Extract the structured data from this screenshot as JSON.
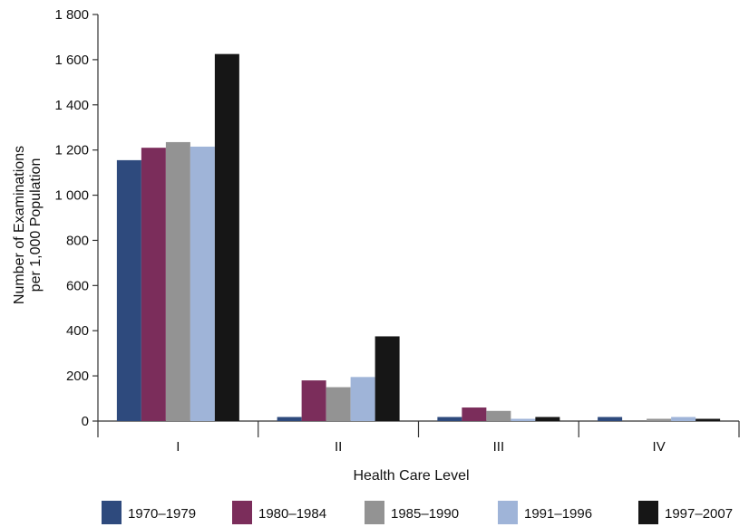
{
  "chart_data": {
    "type": "bar",
    "title": "",
    "xlabel": "Health Care Level",
    "ylabel": [
      "Number of  Examinations",
      "per 1,000 Population"
    ],
    "categories": [
      "I",
      "II",
      "III",
      "IV"
    ],
    "ylim": [
      0,
      1800
    ],
    "yticks": [
      0,
      200,
      400,
      600,
      800,
      1000,
      1200,
      1400,
      1600,
      1800
    ],
    "ytick_labels": [
      "0",
      "200",
      "400",
      "600",
      "800",
      "1 000",
      "1 200",
      "1 400",
      "1 600",
      "1 800"
    ],
    "grid": false,
    "legend_position": "bottom",
    "series": [
      {
        "name": "1970–1979",
        "color": "#2e4a7d",
        "values": [
          1155,
          18,
          18,
          18
        ]
      },
      {
        "name": "1980–1984",
        "color": "#7b2d5b",
        "values": [
          1210,
          180,
          60,
          0
        ]
      },
      {
        "name": "1985–1990",
        "color": "#939393",
        "values": [
          1235,
          150,
          45,
          10
        ]
      },
      {
        "name": "1991–1996",
        "color": "#9fb4d8",
        "values": [
          1215,
          195,
          10,
          18
        ]
      },
      {
        "name": "1997–2007",
        "color": "#161616",
        "values": [
          1625,
          375,
          18,
          10
        ]
      }
    ]
  }
}
